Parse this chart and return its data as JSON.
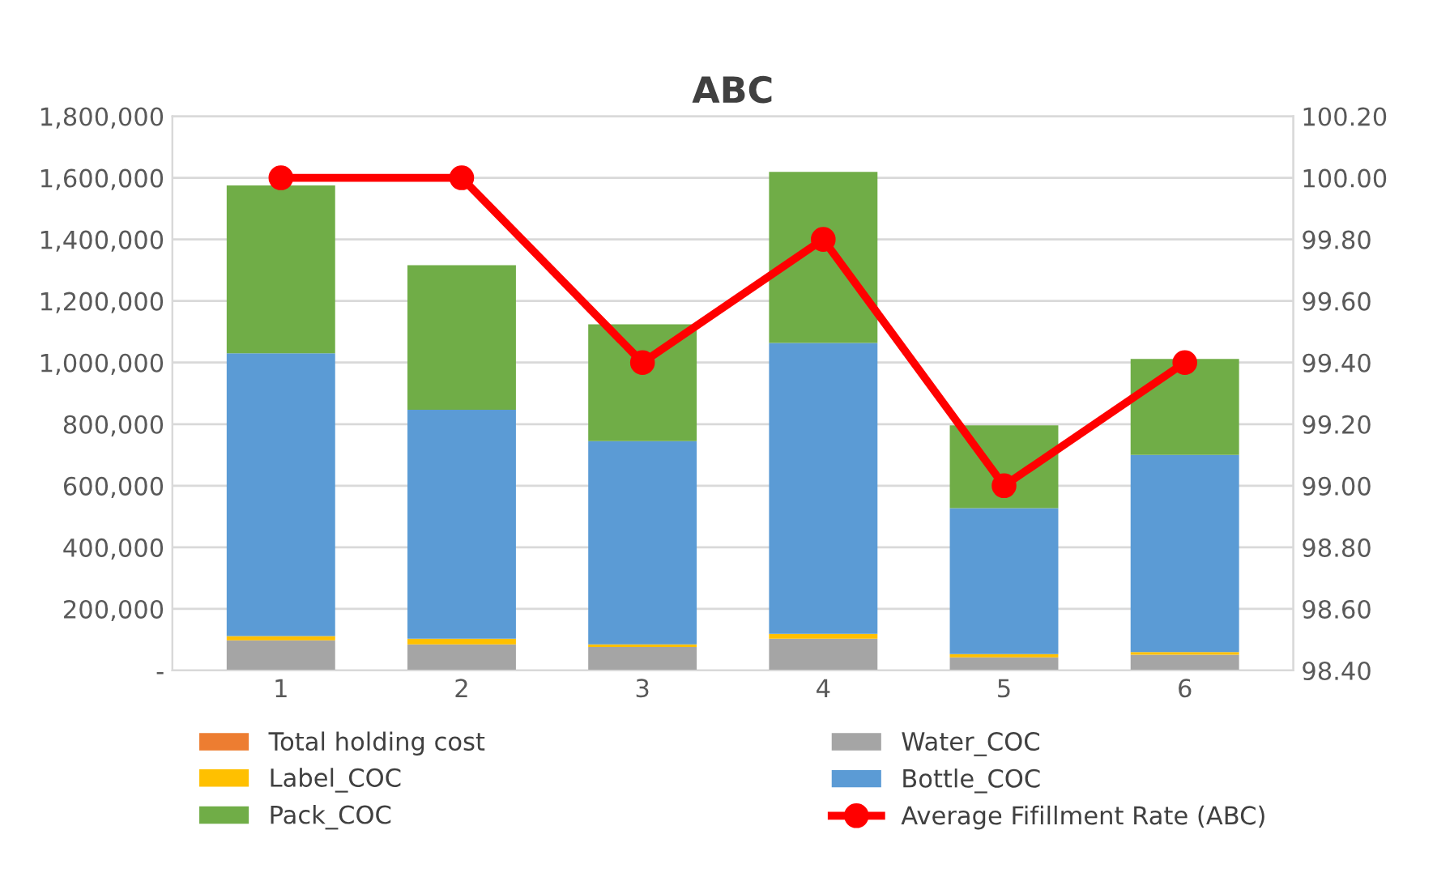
{
  "chart_data": {
    "type": "bar",
    "title": "ABC",
    "stacked": true,
    "categories": [
      "1",
      "2",
      "3",
      "4",
      "5",
      "6"
    ],
    "series": [
      {
        "name": "Total holding cost",
        "color": "#ed7d31",
        "values": [
          0,
          0,
          0,
          0,
          0,
          0
        ]
      },
      {
        "name": "Water_COC",
        "color": "#a5a5a5",
        "values": [
          98000,
          85000,
          76000,
          103000,
          43000,
          51000
        ]
      },
      {
        "name": "Label_COC",
        "color": "#ffc000",
        "values": [
          14000,
          18000,
          9000,
          16000,
          10000,
          9000
        ]
      },
      {
        "name": "Bottle_COC",
        "color": "#5b9bd5",
        "values": [
          918000,
          744000,
          660000,
          945000,
          474000,
          640000
        ]
      },
      {
        "name": "Pack_COC",
        "color": "#70ad47",
        "values": [
          545000,
          469000,
          379000,
          555000,
          269000,
          312000
        ]
      },
      {
        "name": "Average Fifillment Rate (ABC)",
        "type": "line",
        "axis": "y2",
        "color": "#ff0000",
        "marker": "circle",
        "line_style": "solid",
        "values": [
          100.0,
          100.0,
          99.4,
          99.8,
          99.0,
          99.4
        ]
      }
    ],
    "ylim": [
      0,
      1800000
    ],
    "yticks": [
      {
        "value": 0,
        "label": "-"
      },
      {
        "value": 200000,
        "label": "200,000"
      },
      {
        "value": 400000,
        "label": "400,000"
      },
      {
        "value": 600000,
        "label": "600,000"
      },
      {
        "value": 800000,
        "label": "800,000"
      },
      {
        "value": 1000000,
        "label": "1,000,000"
      },
      {
        "value": 1200000,
        "label": "1,200,000"
      },
      {
        "value": 1400000,
        "label": "1,400,000"
      },
      {
        "value": 1600000,
        "label": "1,600,000"
      },
      {
        "value": 1800000,
        "label": "1,800,000"
      }
    ],
    "y2lim": [
      98.4,
      100.2
    ],
    "y2ticks": [
      {
        "value": 98.4,
        "label": "98.40"
      },
      {
        "value": 98.6,
        "label": "98.60"
      },
      {
        "value": 98.8,
        "label": "98.80"
      },
      {
        "value": 99.0,
        "label": "99.00"
      },
      {
        "value": 99.2,
        "label": "99.20"
      },
      {
        "value": 99.4,
        "label": "99.40"
      },
      {
        "value": 99.6,
        "label": "99.60"
      },
      {
        "value": 99.8,
        "label": "99.80"
      },
      {
        "value": 100.0,
        "label": "100.00"
      },
      {
        "value": 100.2,
        "label": "100.20"
      }
    ],
    "grid": "y",
    "legend": "bottom"
  }
}
